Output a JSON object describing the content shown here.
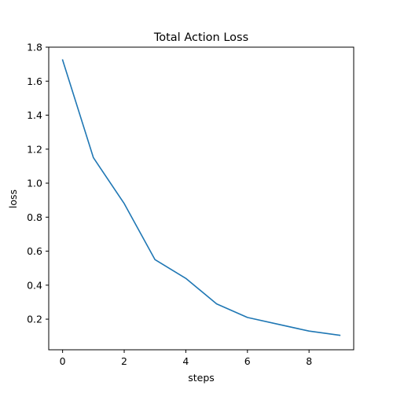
{
  "chart_data": {
    "type": "line",
    "title": "Total Action Loss",
    "xlabel": "steps",
    "ylabel": "loss",
    "x": [
      0,
      1,
      2,
      3,
      4,
      5,
      6,
      7,
      8,
      9
    ],
    "series": [
      {
        "values": [
          1.725,
          1.15,
          0.88,
          0.55,
          0.44,
          0.29,
          0.21,
          0.17,
          0.13,
          0.105
        ],
        "color": "#1f77b4"
      }
    ],
    "xlim": [
      -0.45,
      9.45
    ],
    "ylim": [
      0.02,
      1.8
    ],
    "xticks": [
      0,
      2,
      4,
      6,
      8
    ],
    "xtick_labels": [
      "0",
      "2",
      "4",
      "6",
      "8"
    ],
    "yticks": [
      0.2,
      0.4,
      0.6,
      0.8,
      1.0,
      1.2,
      1.4,
      1.6,
      1.8
    ],
    "ytick_labels": [
      "0.2",
      "0.4",
      "0.6",
      "0.8",
      "1.0",
      "1.2",
      "1.4",
      "1.6",
      "1.8"
    ],
    "grid": false,
    "legend": false
  }
}
